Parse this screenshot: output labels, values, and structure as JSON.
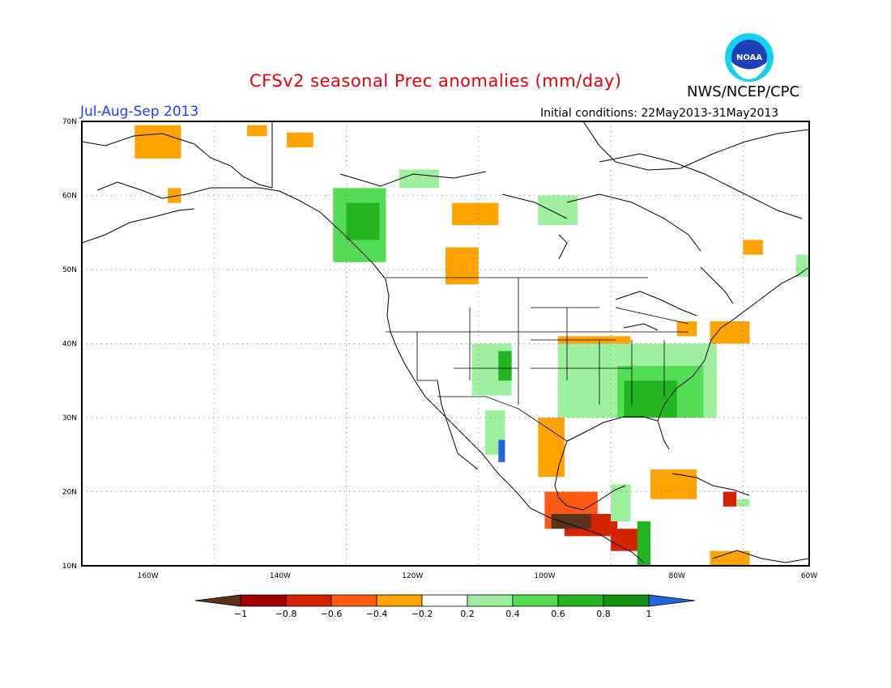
{
  "title": "CFSv2 seasonal Prec anomalies (mm/day)",
  "agency": "NWS/NCEP/CPC",
  "season": "Jul-Aug-Sep 2013",
  "initial_conditions": "Initial conditions: 22May2013-31May2013",
  "logo_text": "NOAA",
  "lat_labels": [
    "70N",
    "60N",
    "50N",
    "40N",
    "30N",
    "20N",
    "10N"
  ],
  "lon_labels": [
    "160W",
    "140W",
    "120W",
    "100W",
    "80W",
    "60W"
  ],
  "colorbar": {
    "labels": [
      "-1",
      "-0.8",
      "-0.6",
      "-0.4",
      "-0.2",
      "0.2",
      "0.4",
      "0.6",
      "0.8",
      "1"
    ],
    "colors": [
      "#5a3418",
      "#a50000",
      "#d52200",
      "#ff5a14",
      "#ffa300",
      "#ffffff",
      "#9ef09e",
      "#55dc55",
      "#21b521",
      "#129212",
      "#1f66d8"
    ]
  },
  "map": {
    "lon_range": [
      -170,
      -60
    ],
    "lat_range": [
      10,
      70
    ],
    "anomaly_regions": [
      {
        "value": -0.3,
        "lon": [
          -162,
          -155
        ],
        "lat": [
          65,
          69.5
        ]
      },
      {
        "value": -0.3,
        "lon": [
          -145,
          -142
        ],
        "lat": [
          68,
          69.5
        ]
      },
      {
        "value": -0.3,
        "lon": [
          -139,
          -135
        ],
        "lat": [
          66.5,
          68.5
        ]
      },
      {
        "value": -0.3,
        "lon": [
          -114,
          -107
        ],
        "lat": [
          56,
          59
        ]
      },
      {
        "value": -0.3,
        "lon": [
          -115,
          -110
        ],
        "lat": [
          48,
          53
        ]
      },
      {
        "value": -0.3,
        "lon": [
          -157,
          -155
        ],
        "lat": [
          59,
          61
        ]
      },
      {
        "value": 0.3,
        "lon": [
          -122,
          -116
        ],
        "lat": [
          61,
          63.5
        ]
      },
      {
        "value": 0.3,
        "lon": [
          -101,
          -95
        ],
        "lat": [
          56,
          60
        ]
      },
      {
        "value": 0.5,
        "lon": [
          -132,
          -124
        ],
        "lat": [
          51,
          61
        ]
      },
      {
        "value": 0.7,
        "lon": [
          -130,
          -125
        ],
        "lat": [
          54,
          59
        ]
      },
      {
        "value": 0.3,
        "lon": [
          -111,
          -105
        ],
        "lat": [
          33,
          40
        ]
      },
      {
        "value": 0.7,
        "lon": [
          -107,
          -105
        ],
        "lat": [
          35,
          39
        ]
      },
      {
        "value": -0.3,
        "lon": [
          -98,
          -87
        ],
        "lat": [
          39,
          41
        ]
      },
      {
        "value": 0.3,
        "lon": [
          -98,
          -74
        ],
        "lat": [
          30,
          40
        ]
      },
      {
        "value": 0.5,
        "lon": [
          -89,
          -76
        ],
        "lat": [
          30,
          37
        ]
      },
      {
        "value": 0.7,
        "lon": [
          -88,
          -80
        ],
        "lat": [
          30,
          35
        ]
      },
      {
        "value": 0.3,
        "lon": [
          -109,
          -106
        ],
        "lat": [
          25,
          31
        ]
      },
      {
        "value": 1.1,
        "lon": [
          -107,
          -106
        ],
        "lat": [
          24,
          27
        ]
      },
      {
        "value": -0.3,
        "lon": [
          -101,
          -97
        ],
        "lat": [
          22,
          30
        ]
      },
      {
        "value": -0.5,
        "lon": [
          -100,
          -92
        ],
        "lat": [
          15,
          20
        ]
      },
      {
        "value": -0.7,
        "lon": [
          -97,
          -89
        ],
        "lat": [
          14,
          17
        ]
      },
      {
        "value": -1.1,
        "lon": [
          -99,
          -93
        ],
        "lat": [
          15,
          17
        ]
      },
      {
        "value": -0.7,
        "lon": [
          -90,
          -85
        ],
        "lat": [
          12,
          15
        ]
      },
      {
        "value": 0.7,
        "lon": [
          -86,
          -84
        ],
        "lat": [
          10,
          16
        ]
      },
      {
        "value": 0.3,
        "lon": [
          -90,
          -87
        ],
        "lat": [
          16,
          21
        ]
      },
      {
        "value": -0.3,
        "lon": [
          -84,
          -77
        ],
        "lat": [
          19,
          23
        ]
      },
      {
        "value": -0.7,
        "lon": [
          -73,
          -71
        ],
        "lat": [
          18,
          20
        ]
      },
      {
        "value": 0.3,
        "lon": [
          -71,
          -69
        ],
        "lat": [
          18,
          19
        ]
      },
      {
        "value": -0.3,
        "lon": [
          -75,
          -69
        ],
        "lat": [
          10,
          12
        ]
      },
      {
        "value": -0.3,
        "lon": [
          -75,
          -69
        ],
        "lat": [
          40,
          43
        ]
      },
      {
        "value": -0.3,
        "lon": [
          -80,
          -77
        ],
        "lat": [
          41,
          43
        ]
      },
      {
        "value": -0.3,
        "lon": [
          -70,
          -67
        ],
        "lat": [
          52,
          54
        ]
      },
      {
        "value": 0.3,
        "lon": [
          -62,
          -60
        ],
        "lat": [
          49,
          52
        ]
      }
    ]
  }
}
